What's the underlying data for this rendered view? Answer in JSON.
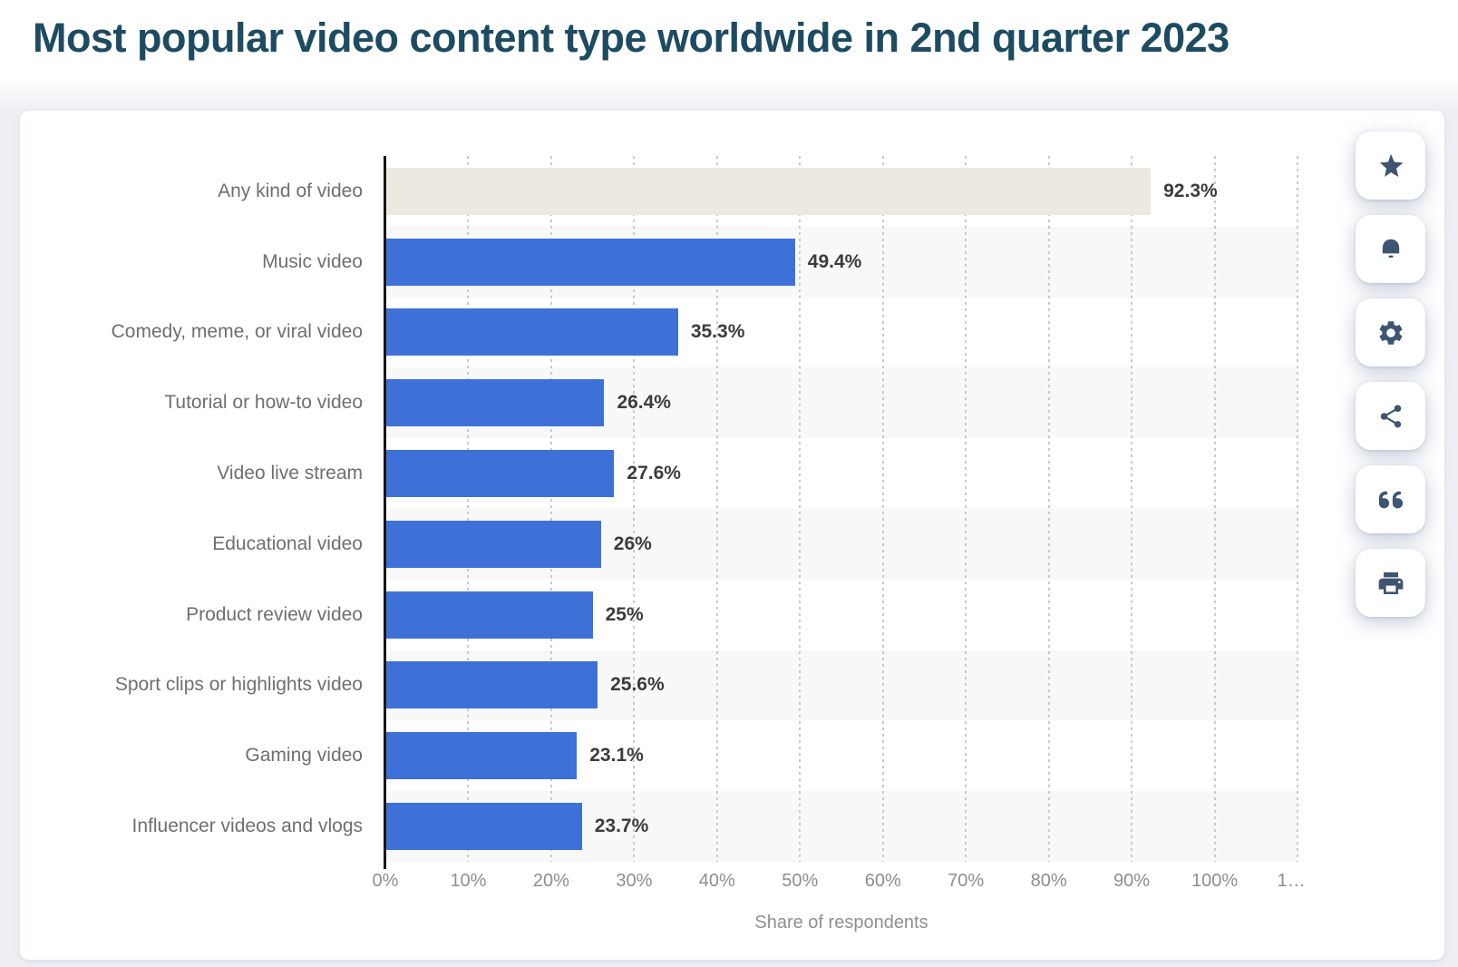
{
  "page": {
    "title": "Most popular video content type worldwide in 2nd quarter 2023"
  },
  "chart_data": {
    "type": "bar",
    "orientation": "horizontal",
    "title": "Most popular video content type worldwide in 2nd quarter 2023",
    "categories": [
      "Any kind of video",
      "Music video",
      "Comedy, meme, or viral video",
      "Tutorial or how-to video",
      "Video live stream",
      "Educational video",
      "Product review video",
      "Sport clips or highlights video",
      "Gaming video",
      "Influencer videos and vlogs"
    ],
    "values": [
      92.3,
      49.4,
      35.3,
      26.4,
      27.6,
      26,
      25,
      25.6,
      23.1,
      23.7
    ],
    "value_labels": [
      "92.3%",
      "49.4%",
      "35.3%",
      "26.4%",
      "27.6%",
      "26%",
      "25%",
      "25.6%",
      "23.1%",
      "23.7%"
    ],
    "xlabel": "Share of respondents",
    "xlim": [
      0,
      110
    ],
    "x_ticks": [
      "0%",
      "10%",
      "20%",
      "30%",
      "40%",
      "50%",
      "60%",
      "70%",
      "80%",
      "90%",
      "100%",
      "1…"
    ],
    "grid": "dotted-vertical",
    "legend": "none",
    "row_striping": "alternate",
    "colors": {
      "bar_default": "#3e71d8",
      "bar_first": "#ece9e1",
      "row_stripe": "#f8f8f9",
      "title": "#1d4b61",
      "category_label": "#6e6f71",
      "value_label": "#3c3c3c",
      "tick_label": "#8b8e93",
      "icon": "#3e5571"
    }
  },
  "toolbar": {
    "buttons": [
      {
        "name": "favorite",
        "icon": "star-icon"
      },
      {
        "name": "alerts",
        "icon": "bell-icon"
      },
      {
        "name": "settings",
        "icon": "gear-icon"
      },
      {
        "name": "share",
        "icon": "share-icon"
      },
      {
        "name": "cite",
        "icon": "quote-icon"
      },
      {
        "name": "print",
        "icon": "print-icon"
      }
    ]
  }
}
